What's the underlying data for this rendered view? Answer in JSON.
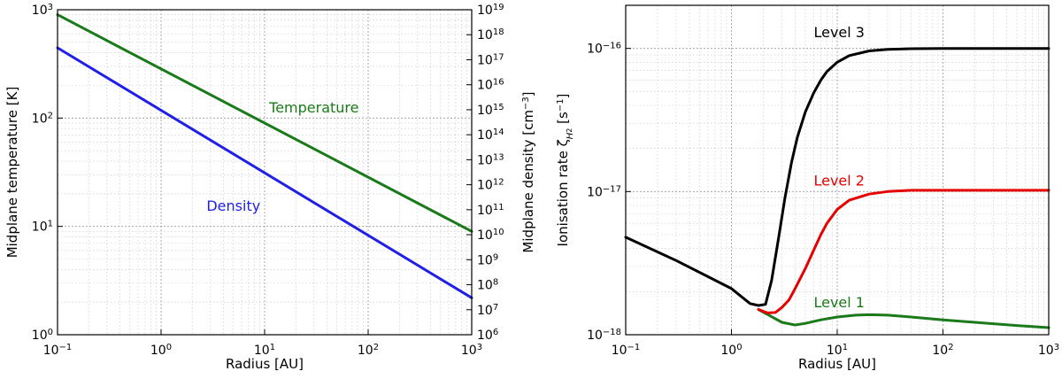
{
  "chart_data": [
    {
      "type": "line",
      "xlabel": "Radius [AU]",
      "ylabel": "Midplane temperature [K]",
      "y2label": "Midplane density [cm",
      "y2label_exp": "−3",
      "y2label_close": "]",
      "xscale": "log",
      "yscale": "log",
      "y2scale": "log",
      "xlim": [
        0.1,
        1000
      ],
      "ylim": [
        1,
        1000
      ],
      "y2lim": [
        1000000,
        10000000000000000000
      ],
      "grid": true,
      "xticks": [
        0.1,
        1,
        10,
        100,
        1000
      ],
      "xtick_exps": [
        "−1",
        "0",
        "1",
        "2",
        "3"
      ],
      "yticks": [
        1,
        10,
        100,
        1000
      ],
      "ytick_exps": [
        "0",
        "1",
        "2",
        "3"
      ],
      "y2ticks": [
        1000000,
        10000000,
        100000000,
        1000000000,
        10000000000,
        100000000000,
        1000000000000,
        10000000000000,
        100000000000000,
        1000000000000000,
        10000000000000000,
        100000000000000000,
        1000000000000000000,
        10000000000000000000
      ],
      "y2tick_exps": [
        "6",
        "7",
        "8",
        "9",
        "10",
        "11",
        "12",
        "13",
        "14",
        "15",
        "16",
        "17",
        "18",
        "19"
      ],
      "tick_base": "10",
      "series": [
        {
          "name": "Temperature",
          "axis": "left",
          "color": "#1a7a1a",
          "x": [
            0.1,
            1000
          ],
          "y": [
            900,
            9
          ]
        },
        {
          "name": "Density",
          "axis": "right",
          "color": "#1f1fe6",
          "x": [
            0.1,
            1000
          ],
          "y": [
            300000000000000000,
            30000000
          ]
        }
      ],
      "annotations": [
        {
          "text": "Temperature",
          "color": "#1a7a1a",
          "x": 30,
          "y": 113
        },
        {
          "text": "Density",
          "color": "#1f1fe6",
          "x": 5,
          "y": 14
        }
      ]
    },
    {
      "type": "line",
      "xlabel": "Radius [AU]",
      "ylabel": "Ionisation rate ζ",
      "ylabel_sub": "H",
      "ylabel_subsub": "2",
      "ylabel_units": " [s",
      "ylabel_exp": "−1",
      "ylabel_close": "]",
      "xscale": "log",
      "yscale": "log",
      "xlim": [
        0.1,
        1000
      ],
      "ylim": [
        1e-18,
        2e-16
      ],
      "grid": true,
      "xticks": [
        0.1,
        1,
        10,
        100,
        1000
      ],
      "xtick_exps": [
        "−1",
        "0",
        "1",
        "2",
        "3"
      ],
      "yticks": [
        1e-18,
        1e-17,
        1e-16
      ],
      "ytick_exps": [
        "−18",
        "−17",
        "−16"
      ],
      "tick_base": "10",
      "series": [
        {
          "name": "Level 1",
          "color": "#1a7a1a",
          "x": [
            1.8,
            2.3,
            3,
            4,
            5,
            7,
            10,
            15,
            20,
            30,
            50,
            100,
            200,
            500,
            1000
          ],
          "y": [
            1.5e-18,
            1.36e-18,
            1.22e-18,
            1.17e-18,
            1.2e-18,
            1.27e-18,
            1.33e-18,
            1.37e-18,
            1.38e-18,
            1.37e-18,
            1.33e-18,
            1.27e-18,
            1.22e-18,
            1.16e-18,
            1.12e-18
          ]
        },
        {
          "name": "Level 2",
          "color": "#e60000",
          "x": [
            1.8,
            2.2,
            2.6,
            3,
            3.5,
            4,
            5,
            6,
            7,
            8,
            10,
            13,
            20,
            30,
            50,
            100,
            200,
            500,
            1000
          ],
          "y": [
            1.5e-18,
            1.42e-18,
            1.43e-18,
            1.55e-18,
            1.75e-18,
            2.1e-18,
            2.9e-18,
            3.9e-18,
            5e-18,
            6e-18,
            7.5e-18,
            8.7e-18,
            9.6e-18,
            1e-17,
            1.02e-17,
            1.02e-17,
            1.02e-17,
            1.02e-17,
            1.02e-17
          ]
        },
        {
          "name": "Level 3",
          "color": "#000000",
          "x": [
            0.1,
            0.3,
            1,
            1.5,
            1.8,
            2.1,
            2.4,
            2.8,
            3.2,
            3.7,
            4.2,
            5,
            6,
            7,
            8,
            10,
            13,
            20,
            30,
            50,
            100,
            200,
            500,
            1000
          ],
          "y": [
            4.8e-18,
            3.3e-18,
            2.1e-18,
            1.65e-18,
            1.6e-18,
            1.63e-18,
            2.4e-18,
            4.8e-18,
            9e-18,
            1.6e-17,
            2.4e-17,
            3.6e-17,
            4.9e-17,
            6e-17,
            6.9e-17,
            8e-17,
            8.9e-17,
            9.6e-17,
            9.85e-17,
            9.95e-17,
            1e-16,
            1e-16,
            1e-16,
            1e-16
          ]
        }
      ],
      "annotations": [
        {
          "text": "Level 3",
          "color": "#000000",
          "x": 6,
          "y": 1.2e-16
        },
        {
          "text": "Level 2",
          "color": "#e60000",
          "x": 6,
          "y": 1.1e-17
        },
        {
          "text": "Level 1",
          "color": "#1a7a1a",
          "x": 6,
          "y": 1.55e-18
        }
      ]
    }
  ]
}
